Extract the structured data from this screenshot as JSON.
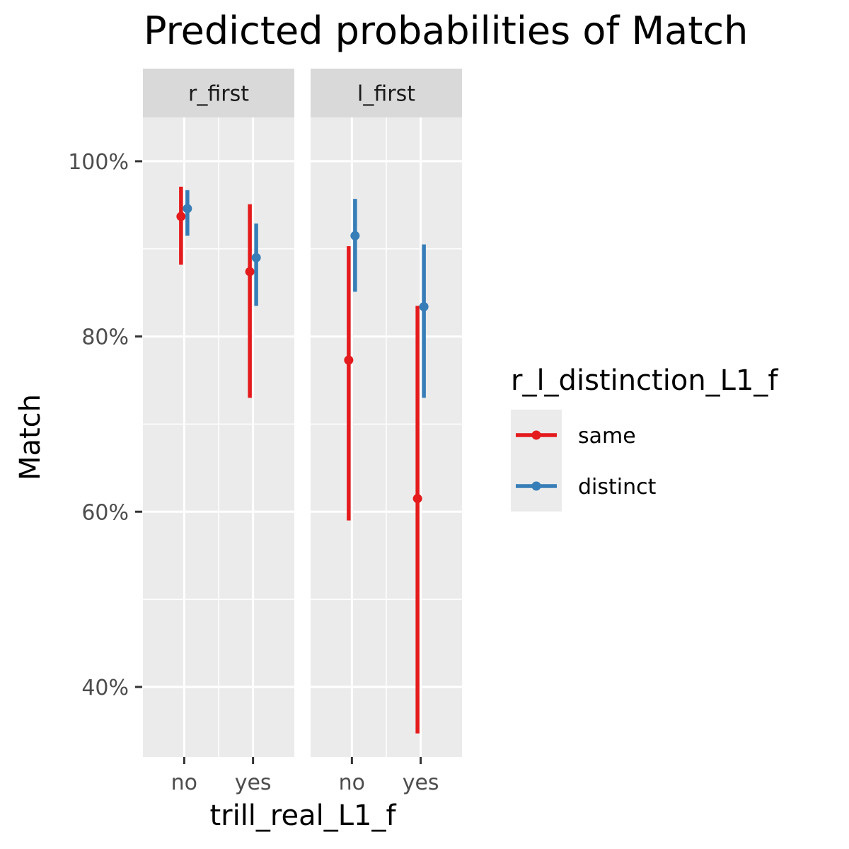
{
  "chart_data": {
    "type": "pointrange",
    "title": "Predicted probabilities of Match",
    "xlabel": "trill_real_L1_f",
    "ylabel": "Match",
    "categories": [
      "no",
      "yes"
    ],
    "ylim": [
      0.32,
      1.05
    ],
    "y_ticks": [
      0.4,
      0.6,
      0.8,
      1.0
    ],
    "y_tick_labels": [
      "40%",
      "60%",
      "80%",
      "100%"
    ],
    "grid": true,
    "legend_title": "r_l_distinction_L1_f",
    "legend_position": "right",
    "panels": [
      {
        "label": "r_first",
        "series": [
          {
            "name": "same",
            "color": "#E41A1C",
            "points": [
              {
                "x": "no",
                "y": 0.937,
                "low": 0.882,
                "high": 0.971
              },
              {
                "x": "yes",
                "y": 0.874,
                "low": 0.73,
                "high": 0.951
              }
            ]
          },
          {
            "name": "distinct",
            "color": "#377EB8",
            "points": [
              {
                "x": "no",
                "y": 0.946,
                "low": 0.915,
                "high": 0.967
              },
              {
                "x": "yes",
                "y": 0.89,
                "low": 0.835,
                "high": 0.929
              }
            ]
          }
        ]
      },
      {
        "label": "l_first",
        "series": [
          {
            "name": "same",
            "color": "#E41A1C",
            "points": [
              {
                "x": "no",
                "y": 0.773,
                "low": 0.59,
                "high": 0.903
              },
              {
                "x": "yes",
                "y": 0.615,
                "low": 0.347,
                "high": 0.835
              }
            ]
          },
          {
            "name": "distinct",
            "color": "#377EB8",
            "points": [
              {
                "x": "no",
                "y": 0.915,
                "low": 0.851,
                "high": 0.957
              },
              {
                "x": "yes",
                "y": 0.834,
                "low": 0.73,
                "high": 0.905
              }
            ]
          }
        ]
      }
    ]
  }
}
